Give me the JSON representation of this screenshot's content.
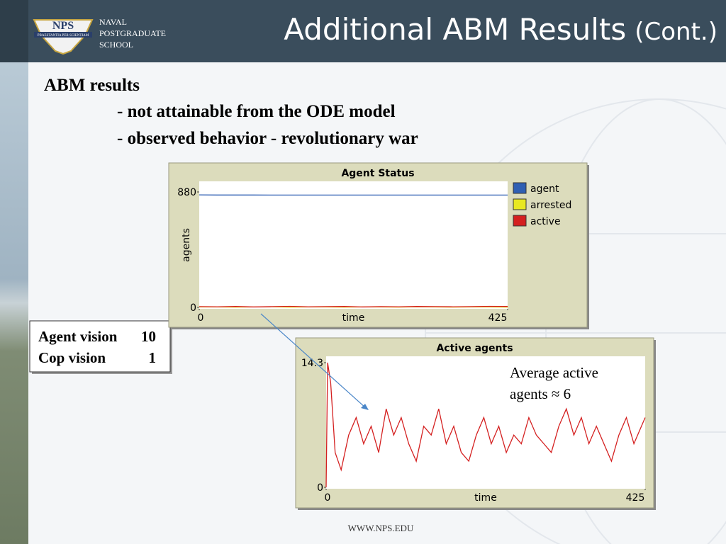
{
  "header": {
    "logo_mark": "NPS",
    "logo_motto": "PRAESTANTIA PER SCIENTIAM",
    "school_lines": [
      "NAVAL",
      "POSTGRADUATE",
      "SCHOOL"
    ],
    "title": "Additional ABM Results",
    "title_suffix": "(Cont.)"
  },
  "bullets": {
    "heading": "ABM results",
    "items": [
      "- not attainable from the ODE model",
      "- observed behavior - revolutionary war"
    ]
  },
  "params": [
    {
      "label": "Agent vision",
      "value": 10
    },
    {
      "label": "Cop vision",
      "value": 1
    }
  ],
  "annotation": [
    "Average active",
    "agents ≈ 6"
  ],
  "footer": "WWW.NPS.EDU",
  "chart_data": [
    {
      "type": "line",
      "title": "Agent Status",
      "xlabel": "time",
      "ylabel": "agents",
      "x": [
        0,
        25,
        50,
        75,
        100,
        125,
        150,
        175,
        200,
        225,
        250,
        275,
        300,
        325,
        350,
        375,
        400,
        425
      ],
      "xlim": [
        0,
        425
      ],
      "xticks": [
        0,
        425
      ],
      "ylim": [
        0,
        880
      ],
      "yticks": [
        0,
        880
      ],
      "legend": "right",
      "series": [
        {
          "name": "agent",
          "color": "#2f5fb3",
          "values": [
            858,
            857,
            857,
            857,
            856,
            856,
            856,
            856,
            856,
            856,
            856,
            856,
            856,
            856,
            856,
            856,
            856,
            856
          ]
        },
        {
          "name": "arrested",
          "color": "#e8e820",
          "values": [
            3,
            4,
            2,
            3,
            5,
            2,
            4,
            3,
            2,
            4,
            3,
            2,
            5,
            3,
            2,
            4,
            3,
            2
          ]
        },
        {
          "name": "active",
          "color": "#d42020",
          "values": [
            6,
            5,
            7,
            4,
            6,
            8,
            5,
            6,
            7,
            4,
            6,
            5,
            7,
            6,
            5,
            6,
            8,
            7
          ]
        }
      ]
    },
    {
      "type": "line",
      "title": "Active agents",
      "xlabel": "time",
      "x": [
        0,
        2,
        6,
        12,
        20,
        30,
        40,
        50,
        60,
        70,
        80,
        90,
        100,
        110,
        120,
        130,
        140,
        150,
        160,
        170,
        180,
        190,
        200,
        210,
        220,
        230,
        240,
        250,
        260,
        270,
        280,
        290,
        300,
        310,
        320,
        330,
        340,
        350,
        360,
        370,
        380,
        390,
        400,
        410,
        420,
        425
      ],
      "xlim": [
        0,
        425
      ],
      "xticks": [
        0,
        425
      ],
      "ylim": [
        0,
        14.3
      ],
      "yticks": [
        0,
        14.3
      ],
      "series": [
        {
          "name": "active",
          "color": "#d42020",
          "values": [
            0,
            14.3,
            12,
            4,
            2,
            6,
            8,
            5,
            7,
            4,
            9,
            6,
            8,
            5,
            3,
            7,
            6,
            9,
            5,
            7,
            4,
            3,
            6,
            8,
            5,
            7,
            4,
            6,
            5,
            8,
            6,
            5,
            4,
            7,
            9,
            6,
            8,
            5,
            7,
            5,
            3,
            6,
            8,
            5,
            7,
            8
          ]
        }
      ]
    }
  ]
}
